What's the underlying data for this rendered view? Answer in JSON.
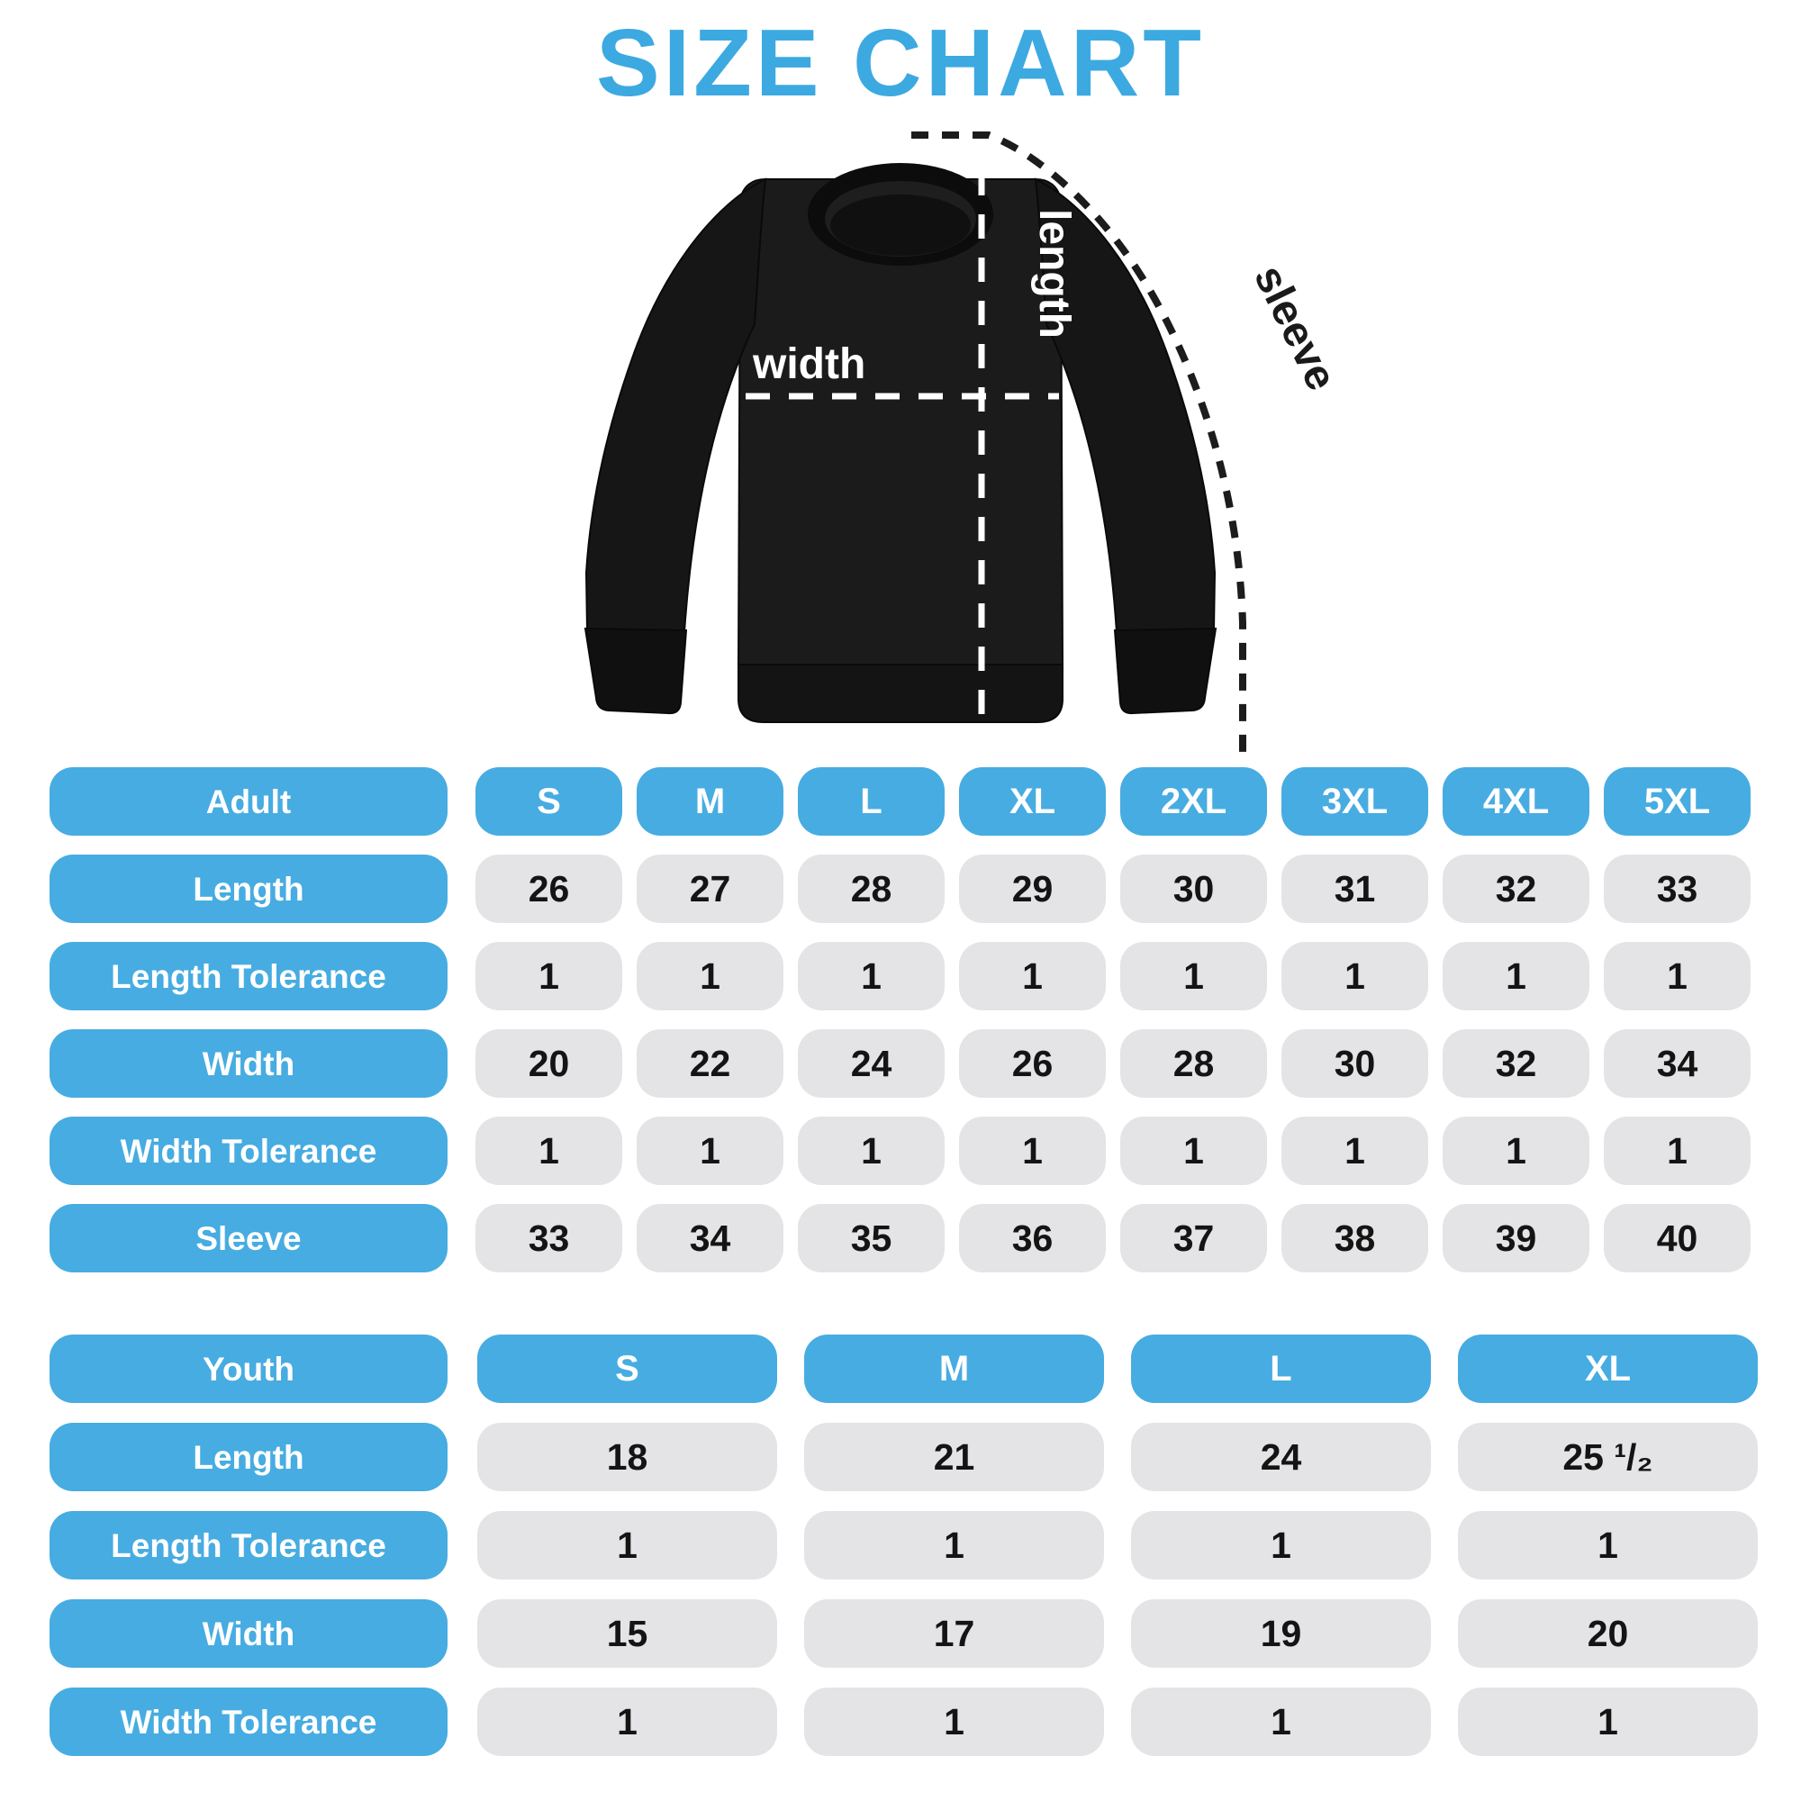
{
  "title": "SIZE CHART",
  "colors": {
    "title_blue": "#3DA9E1",
    "accent_blue": "#47ACE1",
    "cell_gray": "#E4E4E6",
    "garment_black": "#1A1A1A",
    "measure_line_white": "#FFFFFF",
    "measure_line_black": "#1C1C1C"
  },
  "garment": {
    "length_label": "length",
    "width_label": "width",
    "sleeve_label": "sleeve"
  },
  "adult_table": {
    "group_label": "Adult",
    "sizes": [
      "S",
      "M",
      "L",
      "XL",
      "2XL",
      "3XL",
      "4XL",
      "5XL"
    ],
    "rows": [
      {
        "label": "Length",
        "values": [
          "26",
          "27",
          "28",
          "29",
          "30",
          "31",
          "32",
          "33"
        ]
      },
      {
        "label": "Length Tolerance",
        "values": [
          "1",
          "1",
          "1",
          "1",
          "1",
          "1",
          "1",
          "1"
        ]
      },
      {
        "label": "Width",
        "values": [
          "20",
          "22",
          "24",
          "26",
          "28",
          "30",
          "32",
          "34"
        ]
      },
      {
        "label": "Width Tolerance",
        "values": [
          "1",
          "1",
          "1",
          "1",
          "1",
          "1",
          "1",
          "1"
        ]
      },
      {
        "label": "Sleeve",
        "values": [
          "33",
          "34",
          "35",
          "36",
          "37",
          "38",
          "39",
          "40"
        ]
      }
    ]
  },
  "youth_table": {
    "group_label": "Youth",
    "sizes": [
      "S",
      "M",
      "L",
      "XL"
    ],
    "rows": [
      {
        "label": "Length",
        "values": [
          "18",
          "21",
          "24",
          "25 ¹/₂"
        ]
      },
      {
        "label": "Length Tolerance",
        "values": [
          "1",
          "1",
          "1",
          "1"
        ]
      },
      {
        "label": "Width",
        "values": [
          "15",
          "17",
          "19",
          "20"
        ]
      },
      {
        "label": "Width Tolerance",
        "values": [
          "1",
          "1",
          "1",
          "1"
        ]
      }
    ]
  }
}
